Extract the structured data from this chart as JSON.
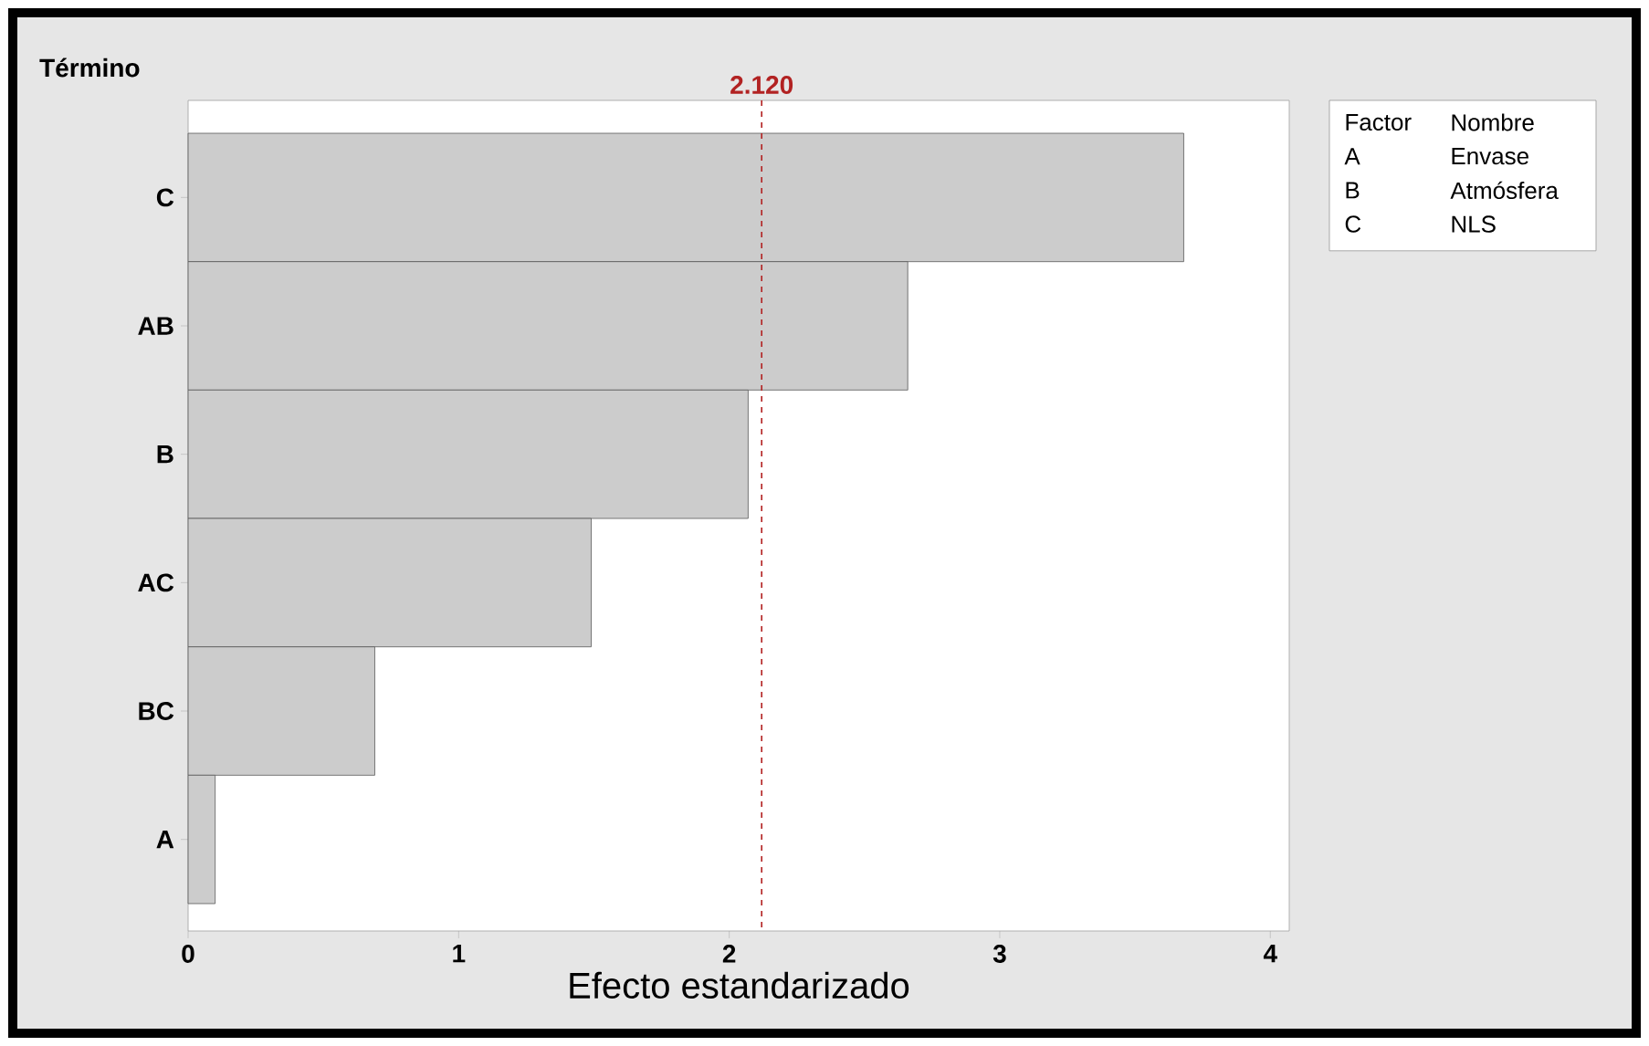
{
  "chart_data": {
    "type": "bar",
    "orientation": "horizontal",
    "ylabel": "Término",
    "xlabel": "Efecto estandarizado",
    "categories": [
      "C",
      "AB",
      "B",
      "AC",
      "BC",
      "A"
    ],
    "values": [
      3.68,
      2.66,
      2.07,
      1.49,
      0.69,
      0.1
    ],
    "color": "#cccccc",
    "xlim": [
      0,
      4.07
    ],
    "xticks": [
      0,
      1,
      2,
      3,
      4
    ],
    "ref_lines": [
      {
        "axis": "x",
        "value": 2.12,
        "label": "2.120",
        "color": "#b22222",
        "line_style": "dashed"
      }
    ],
    "annotations": [
      "Factor",
      "Nombre",
      "A",
      "Envase",
      "B",
      "Atmósfera",
      "C",
      "NLS"
    ],
    "grid": false
  }
}
